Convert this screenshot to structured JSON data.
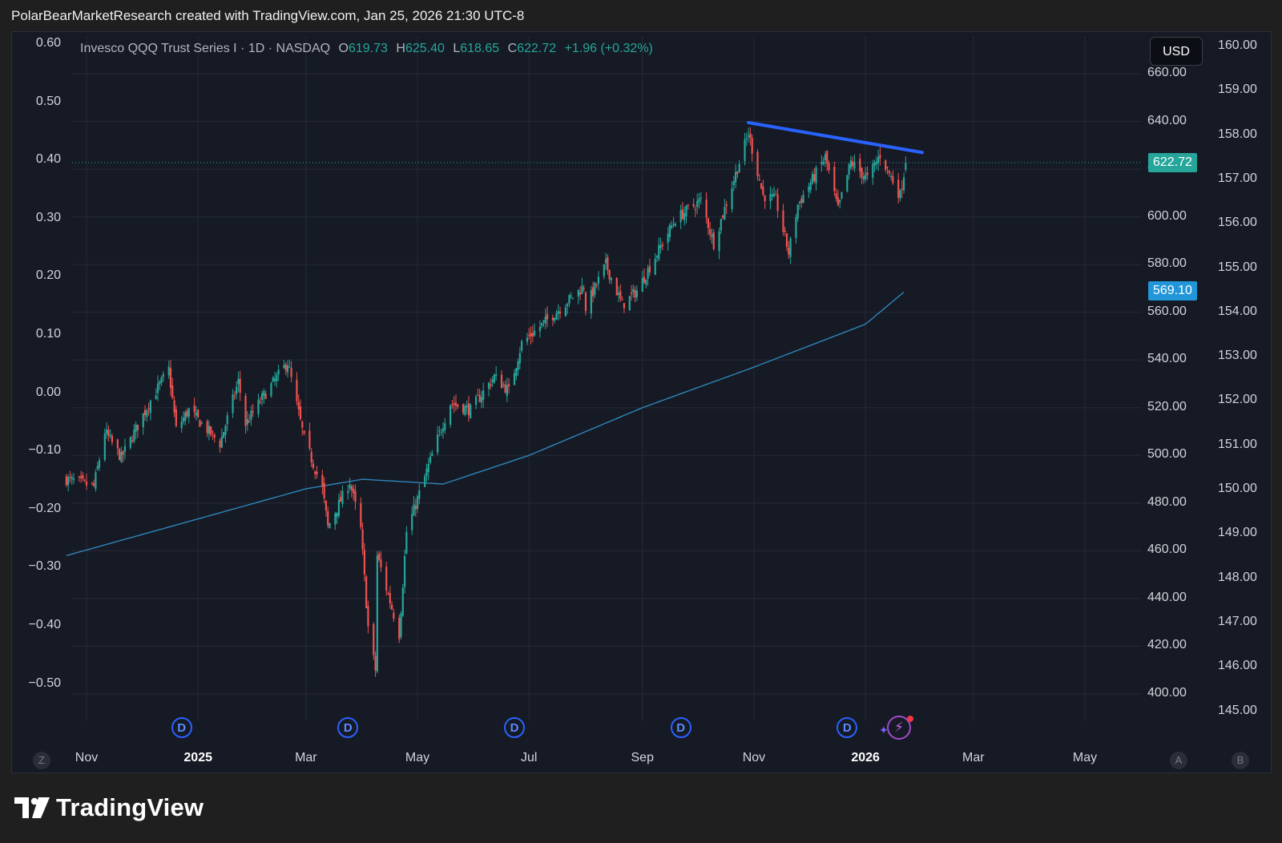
{
  "header": {
    "attribution": "PolarBearMarketResearch created with TradingView.com, Jan 25, 2026 21:30 UTC-8"
  },
  "legend": {
    "name": "Invesco QQQ Trust Series I · 1D · NASDAQ",
    "o_key": "O",
    "o": "619.73",
    "h_key": "H",
    "h": "625.40",
    "l_key": "L",
    "l": "618.65",
    "c_key": "C",
    "c": "622.72",
    "change": "+1.96 (+0.32%)"
  },
  "currency_button": "USD",
  "price_tag": {
    "label": "622.72",
    "color": "#26a69a"
  },
  "ma_tag": {
    "label": "569.10",
    "color": "#2196d8"
  },
  "brand": {
    "name": "TradingView"
  },
  "markers": {
    "dividend_letter": "D",
    "corner_left": "Z",
    "corner_a": "A",
    "corner_b": "B"
  },
  "colors": {
    "up": "#26a69a",
    "down": "#ef5350",
    "trendline": "#2962ff",
    "ma": "#2f85b8",
    "background": "#161a25"
  },
  "chart_data": {
    "type": "candlestick",
    "symbol": "Invesco QQQ Trust Series I",
    "interval": "1D",
    "exchange": "NASDAQ",
    "x_ticks": [
      "Nov",
      "2025",
      "Mar",
      "May",
      "Jul",
      "Sep",
      "Nov",
      "2026",
      "Mar",
      "May"
    ],
    "x_tick_dates": [
      "2024-11-01",
      "2025-01-01",
      "2025-03-01",
      "2025-05-01",
      "2025-07-01",
      "2025-09-01",
      "2025-11-01",
      "2026-01-01",
      "2026-03-01",
      "2026-05-01"
    ],
    "price_axis_ticks": [
      "400.00",
      "420.00",
      "440.00",
      "460.00",
      "480.00",
      "500.00",
      "520.00",
      "540.00",
      "560.00",
      "580.00",
      "600.00",
      "620.00",
      "640.00",
      "660.00"
    ],
    "left_axis_ticks": [
      "0.60",
      "0.50",
      "0.40",
      "0.30",
      "0.20",
      "0.10",
      "0.00",
      "−0.10",
      "−0.20",
      "−0.30",
      "−0.40",
      "−0.50"
    ],
    "right_axis_ticks": [
      "160.00",
      "159.00",
      "158.00",
      "157.00",
      "156.00",
      "155.00",
      "154.00",
      "153.00",
      "152.00",
      "151.00",
      "150.00",
      "149.00",
      "148.00",
      "147.00",
      "146.00",
      "145.00"
    ],
    "price_range": [
      400,
      660
    ],
    "last_close": 622.72,
    "ohlc_last": {
      "open": 619.73,
      "high": 625.4,
      "low": 618.65,
      "close": 622.72,
      "change": 1.96,
      "change_pct": 0.32
    },
    "close_anchors": [
      [
        "2024-10-21",
        490
      ],
      [
        "2024-11-05",
        487
      ],
      [
        "2024-11-11",
        510
      ],
      [
        "2024-11-20",
        499
      ],
      [
        "2024-12-06",
        523
      ],
      [
        "2024-12-16",
        536
      ],
      [
        "2024-12-20",
        511
      ],
      [
        "2024-12-27",
        519
      ],
      [
        "2025-01-13",
        505
      ],
      [
        "2025-01-23",
        531
      ],
      [
        "2025-01-27",
        513
      ],
      [
        "2025-02-05",
        524
      ],
      [
        "2025-02-19",
        539
      ],
      [
        "2025-02-28",
        507
      ],
      [
        "2025-03-10",
        486
      ],
      [
        "2025-03-13",
        470
      ],
      [
        "2025-03-25",
        489
      ],
      [
        "2025-03-31",
        469
      ],
      [
        "2025-04-04",
        428
      ],
      [
        "2025-04-08",
        410
      ],
      [
        "2025-04-09",
        458
      ],
      [
        "2025-04-21",
        425
      ],
      [
        "2025-04-25",
        468
      ],
      [
        "2025-05-02",
        484
      ],
      [
        "2025-05-12",
        507
      ],
      [
        "2025-05-19",
        522
      ],
      [
        "2025-05-30",
        519
      ],
      [
        "2025-06-12",
        533
      ],
      [
        "2025-06-20",
        527
      ],
      [
        "2025-06-27",
        547
      ],
      [
        "2025-07-17",
        561
      ],
      [
        "2025-07-31",
        571
      ],
      [
        "2025-08-01",
        562
      ],
      [
        "2025-08-12",
        580
      ],
      [
        "2025-08-21",
        563
      ],
      [
        "2025-08-29",
        569
      ],
      [
        "2025-09-19",
        599
      ],
      [
        "2025-10-03",
        607
      ],
      [
        "2025-10-10",
        589
      ],
      [
        "2025-10-29",
        635
      ],
      [
        "2025-11-06",
        609
      ],
      [
        "2025-11-13",
        607
      ],
      [
        "2025-11-20",
        585
      ],
      [
        "2025-11-25",
        605
      ],
      [
        "2025-12-10",
        625
      ],
      [
        "2025-12-17",
        603
      ],
      [
        "2025-12-24",
        623
      ],
      [
        "2026-01-02",
        616
      ],
      [
        "2026-01-09",
        626
      ],
      [
        "2026-01-20",
        609
      ],
      [
        "2026-01-23",
        622.72
      ]
    ],
    "moving_average": {
      "name": "",
      "last": 569.1,
      "points": [
        [
          "2024-10-21",
          458
        ],
        [
          "2025-03-01",
          486
        ],
        [
          "2025-04-01",
          490
        ],
        [
          "2025-05-15",
          488
        ],
        [
          "2025-07-01",
          500
        ],
        [
          "2025-09-01",
          520
        ],
        [
          "2025-11-01",
          537
        ],
        [
          "2026-01-01",
          555
        ],
        [
          "2026-01-23",
          569.1
        ]
      ]
    },
    "trendline": {
      "from": [
        "2025-10-29",
        639.5
      ],
      "to": [
        "2026-02-01",
        627
      ]
    },
    "dividend_markers": [
      "2024-12-23",
      "2025-03-24",
      "2025-06-23",
      "2025-09-22",
      "2025-12-22"
    ],
    "grid": true
  }
}
